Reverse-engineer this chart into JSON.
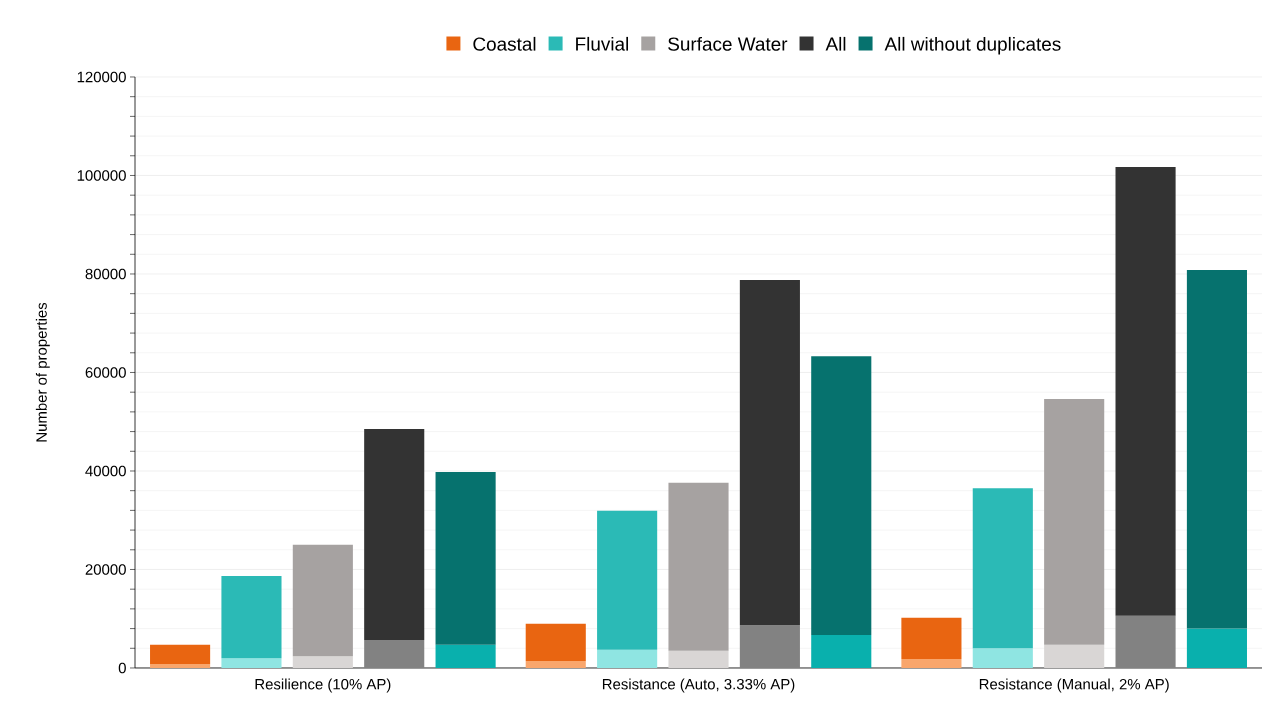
{
  "chart_data": {
    "type": "bar",
    "stacked": true,
    "ylabel": "Number of properties",
    "categories": [
      null,
      null,
      "Resilience (10% AP)",
      null,
      null,
      null,
      null,
      "Resistance (Auto, 3.33% AP)",
      null,
      null,
      null,
      null,
      "Resistance (Manual, 2% AP)",
      null,
      null
    ],
    "series": [
      {
        "color": "#f9a66c",
        "values": [
          800,
          null,
          null,
          null,
          null,
          1400,
          null,
          null,
          null,
          null,
          1800,
          null,
          null,
          null,
          null
        ]
      },
      {
        "name": "Coastal",
        "color": "#e96511",
        "values": [
          3900,
          null,
          null,
          null,
          null,
          7600,
          null,
          null,
          null,
          null,
          8400,
          null,
          null,
          null,
          null
        ]
      },
      {
        "color": "#8fe5e2",
        "values": [
          null,
          2000,
          null,
          null,
          null,
          null,
          3700,
          null,
          null,
          null,
          null,
          4000,
          null,
          null,
          null
        ]
      },
      {
        "name": "Fluvial",
        "color": "#2bbab6",
        "values": [
          null,
          16700,
          null,
          null,
          null,
          null,
          28200,
          null,
          null,
          null,
          null,
          32500,
          null,
          null,
          null
        ]
      },
      {
        "color": "#d9d6d5",
        "values": [
          null,
          null,
          2400,
          null,
          null,
          null,
          null,
          3500,
          null,
          null,
          null,
          null,
          4700,
          null,
          null
        ]
      },
      {
        "name": "Surface Water",
        "color": "#a6a2a1",
        "values": [
          null,
          null,
          22600,
          null,
          null,
          null,
          null,
          34100,
          null,
          null,
          null,
          null,
          49900,
          null,
          null
        ]
      },
      {
        "color": "#828282",
        "values": [
          null,
          null,
          null,
          5700,
          null,
          null,
          null,
          null,
          8700,
          null,
          null,
          null,
          null,
          10600,
          null
        ]
      },
      {
        "name": "All",
        "color": "#333333",
        "values": [
          null,
          null,
          null,
          42800,
          null,
          null,
          null,
          null,
          70100,
          null,
          null,
          null,
          null,
          91100,
          null
        ]
      },
      {
        "color": "#09b0ad",
        "values": [
          null,
          null,
          null,
          null,
          4700,
          null,
          null,
          null,
          null,
          6700,
          null,
          null,
          null,
          null,
          8000
        ]
      },
      {
        "name": "All without duplicates",
        "color": "#06726e",
        "values": [
          null,
          null,
          null,
          null,
          35100,
          null,
          null,
          null,
          null,
          56600,
          null,
          null,
          null,
          null,
          72800
        ]
      }
    ],
    "ylim": [
      0,
      120000
    ],
    "yticks": [
      0,
      20000,
      40000,
      60000,
      80000,
      100000,
      120000
    ],
    "grid": "y",
    "legend": "top"
  }
}
